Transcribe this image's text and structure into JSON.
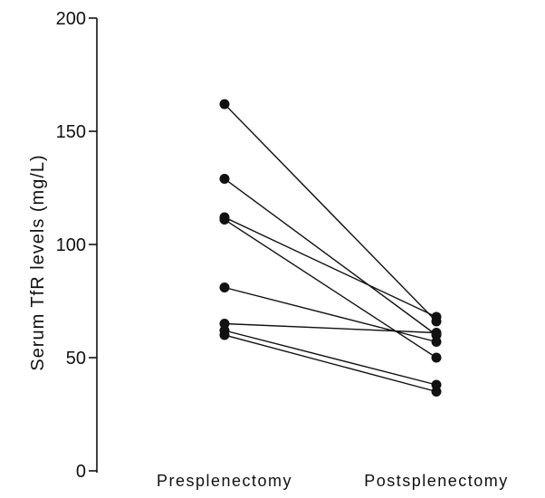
{
  "chart_data": {
    "type": "line",
    "categories": [
      "Presplenectomy",
      "Postsplenectomy"
    ],
    "ylabel": "Serum  TfR  levels  (mg/L)",
    "xlabel": "",
    "ylim": [
      0,
      200
    ],
    "yticks": [
      0,
      50,
      100,
      150,
      200
    ],
    "grid": false,
    "series": [
      {
        "values": [
          162,
          66
        ]
      },
      {
        "values": [
          129,
          60
        ]
      },
      {
        "values": [
          112,
          68
        ]
      },
      {
        "values": [
          111,
          50
        ]
      },
      {
        "values": [
          81,
          57
        ]
      },
      {
        "values": [
          65,
          61
        ]
      },
      {
        "values": [
          62,
          38
        ]
      },
      {
        "values": [
          60,
          35
        ]
      }
    ]
  }
}
